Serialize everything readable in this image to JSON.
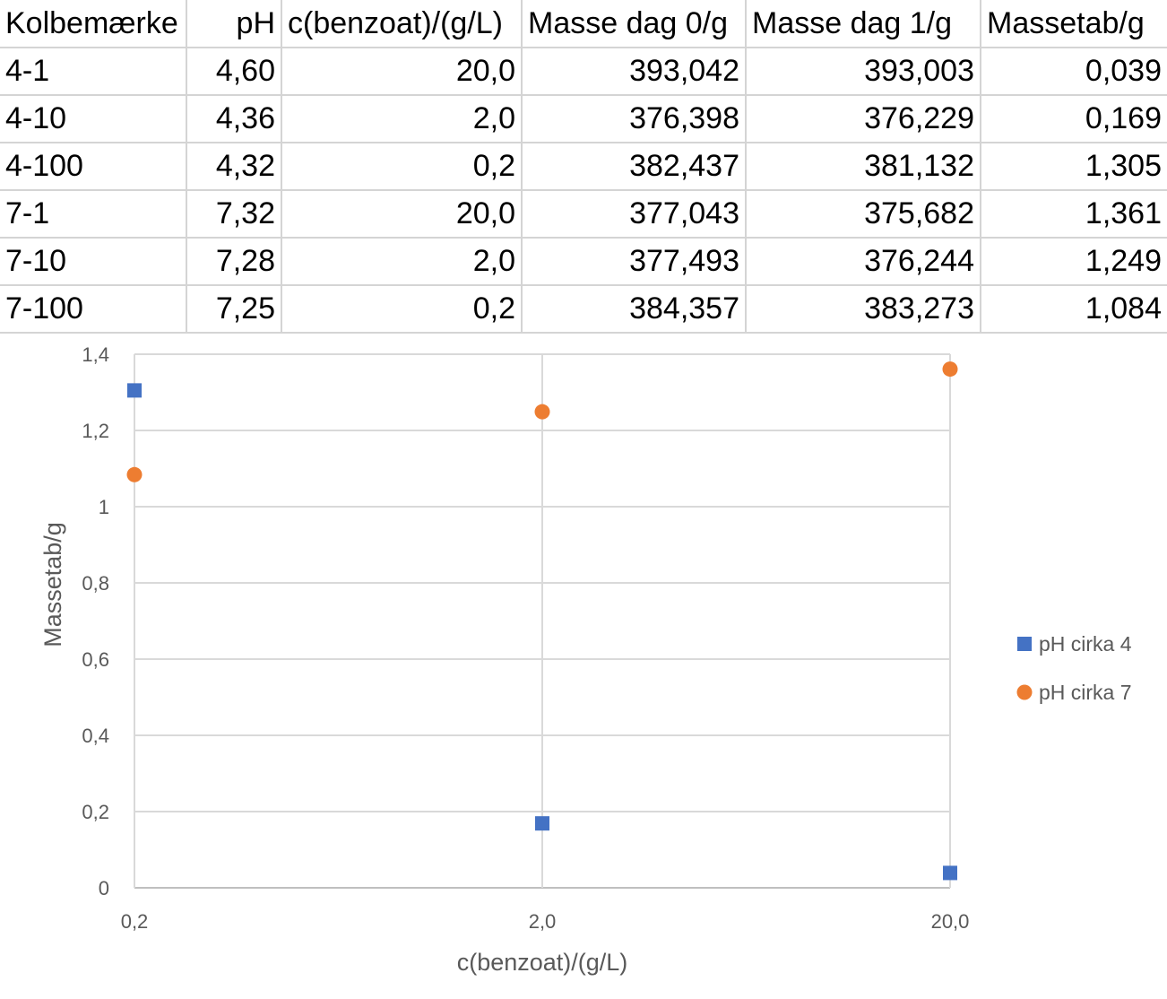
{
  "table": {
    "headers": [
      "Kolbemærke",
      "pH",
      "c(benzoat)/(g/L)",
      "Masse dag 0/g",
      "Masse dag 1/g",
      "Massetab/g"
    ],
    "rows": [
      [
        "4-1",
        "4,60",
        "20,0",
        "393,042",
        "393,003",
        "0,039"
      ],
      [
        "4-10",
        "4,36",
        "2,0",
        "376,398",
        "376,229",
        "0,169"
      ],
      [
        "4-100",
        "4,32",
        "0,2",
        "382,437",
        "381,132",
        "1,305"
      ],
      [
        "7-1",
        "7,32",
        "20,0",
        "377,043",
        "375,682",
        "1,361"
      ],
      [
        "7-10",
        "7,28",
        "2,0",
        "377,493",
        "376,244",
        "1,249"
      ],
      [
        "7-100",
        "7,25",
        "0,2",
        "384,357",
        "383,273",
        "1,084"
      ]
    ]
  },
  "chart_data": {
    "type": "scatter",
    "title": "",
    "xlabel": "c(benzoat)/(g/L)",
    "ylabel": "Massetab/g",
    "x_scale": "log",
    "x_ticks": [
      0.2,
      2.0,
      20.0
    ],
    "x_tick_labels": [
      "0,2",
      "2,0",
      "20,0"
    ],
    "ylim": [
      0,
      1.4
    ],
    "y_ticks": [
      0,
      0.2,
      0.4,
      0.6,
      0.8,
      1.0,
      1.2,
      1.4
    ],
    "y_tick_labels": [
      "0",
      "0,2",
      "0,4",
      "0,6",
      "0,8",
      "1",
      "1,2",
      "1,4"
    ],
    "grid": true,
    "legend_position": "right",
    "series": [
      {
        "name": "pH cirka 4",
        "marker": "square",
        "color": "#4472C4",
        "x": [
          20.0,
          2.0,
          0.2
        ],
        "y": [
          0.039,
          0.169,
          1.305
        ]
      },
      {
        "name": "pH cirka 7",
        "marker": "circle",
        "color": "#ED7D31",
        "x": [
          20.0,
          2.0,
          0.2
        ],
        "y": [
          1.361,
          1.249,
          1.084
        ]
      }
    ]
  }
}
